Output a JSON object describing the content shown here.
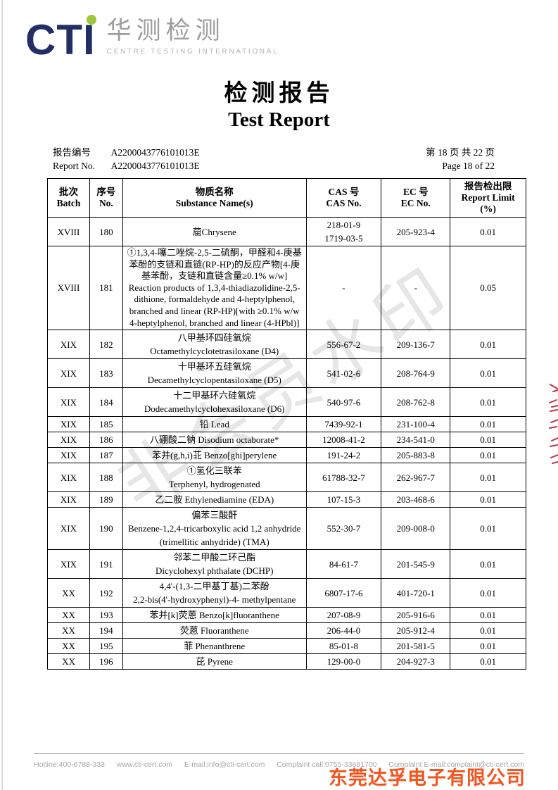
{
  "logo": {
    "wordmark": "CTI",
    "chinese_name": "华测检测",
    "subtitle": "CENTRE TESTING INTERNATIONAL",
    "wordmark_color": "#222e64",
    "dot_color": "#9dc63b"
  },
  "title": {
    "zh": "检测报告",
    "en": "Test Report"
  },
  "meta": {
    "report_no_label_zh": "报告编号",
    "report_no_label_en": "Report No.",
    "report_no_value": "A2200043776101013E",
    "page_info_zh": "第 18 页 共 22 页",
    "page_info_en": "Page 18 of 22"
  },
  "watermark": {
    "text": "非会员水印"
  },
  "table": {
    "headers": [
      {
        "zh": "批次",
        "en": "Batch"
      },
      {
        "zh": "序号",
        "en": "No."
      },
      {
        "zh": "物质名称",
        "en": "Substance Name(s)"
      },
      {
        "zh": "CAS 号",
        "en": "CAS No."
      },
      {
        "zh": "EC 号",
        "en": "EC No."
      },
      {
        "zh": "报告检出限",
        "en": "Report Limit",
        "unit": "(%)"
      }
    ],
    "rows": [
      {
        "batch": "XVIII",
        "no": "180",
        "name_lines": [
          "䓛Chrysene"
        ],
        "cas_lines": [
          "218-01-9",
          "1719-03-5"
        ],
        "ec": "205-923-4",
        "limit": "0.01"
      },
      {
        "batch": "XVIII",
        "no": "181",
        "dense": true,
        "name_lines": [
          "①1,3,4-噻二唑烷-2,5-二硫酮，甲醛和4-庚基苯酚的支链和直链(RP-HP)的反应产物[4-庚基苯酚，支链和直链含量≥0.1% w/w] Reaction products of 1,3,4-thiadiazolidine-2,5- dithione, formaldehyde and 4-heptylphenol, branched and linear (RP-HP)[with ≥0.1% w/w 4-heptylphenol, branched and linear (4-HPbl)]"
        ],
        "cas_lines": [
          "-"
        ],
        "ec": "-",
        "limit": "0.05"
      },
      {
        "batch": "XIX",
        "no": "182",
        "name_lines": [
          "八甲基环四硅氧烷",
          "Octamethylcyclotetrasiloxane (D4)"
        ],
        "cas_lines": [
          "556-67-2"
        ],
        "ec": "209-136-7",
        "limit": "0.01"
      },
      {
        "batch": "XIX",
        "no": "183",
        "name_lines": [
          "十甲基环五硅氧烷",
          "Decamethylcyclopentasiloxane (D5)"
        ],
        "cas_lines": [
          "541-02-6"
        ],
        "ec": "208-764-9",
        "limit": "0.01"
      },
      {
        "batch": "XIX",
        "no": "184",
        "name_lines": [
          "十二甲基环六硅氧烷",
          "Dodecamethylcyclohexasiloxane (D6)"
        ],
        "cas_lines": [
          "540-97-6"
        ],
        "ec": "208-762-8",
        "limit": "0.01"
      },
      {
        "batch": "XIX",
        "no": "185",
        "name_lines": [
          "铅 Lead"
        ],
        "cas_lines": [
          "7439-92-1"
        ],
        "ec": "231-100-4",
        "limit": "0.01"
      },
      {
        "batch": "XIX",
        "no": "186",
        "name_lines": [
          "八硼酸二钠 Disodium octaborate*"
        ],
        "cas_lines": [
          "12008-41-2"
        ],
        "ec": "234-541-0",
        "limit": "0.01"
      },
      {
        "batch": "XIX",
        "no": "187",
        "name_lines": [
          "苯并(g,h,i)苝 Benzo[ghi]perylene"
        ],
        "cas_lines": [
          "191-24-2"
        ],
        "ec": "205-883-8",
        "limit": "0.01"
      },
      {
        "batch": "XIX",
        "no": "188",
        "name_lines": [
          "①氢化三联苯",
          "Terphenyl, hydrogenated"
        ],
        "cas_lines": [
          "61788-32-7"
        ],
        "ec": "262-967-7",
        "limit": "0.01"
      },
      {
        "batch": "XIX",
        "no": "189",
        "name_lines": [
          "乙二胺 Ethylenediamine (EDA)"
        ],
        "cas_lines": [
          "107-15-3"
        ],
        "ec": "203-468-6",
        "limit": "0.01"
      },
      {
        "batch": "XIX",
        "no": "190",
        "name_lines": [
          "偏苯三酸酐",
          "Benzene-1,2,4-tricarboxylic acid 1,2 anhydride (trimellitic anhydride) (TMA)"
        ],
        "cas_lines": [
          "552-30-7"
        ],
        "ec": "209-008-0",
        "limit": "0.01"
      },
      {
        "batch": "XIX",
        "no": "191",
        "name_lines": [
          "邻苯二甲酸二环己酯",
          "Dicyclohexyl phthalate (DCHP)"
        ],
        "cas_lines": [
          "84-61-7"
        ],
        "ec": "201-545-9",
        "limit": "0.01"
      },
      {
        "batch": "XX",
        "no": "192",
        "name_lines": [
          "4,4'-(1,3-二甲基丁基)二苯酚",
          "2,2-bis(4'-hydroxyphenyl)-4- methylpentane"
        ],
        "cas_lines": [
          "6807-17-6"
        ],
        "ec": "401-720-1",
        "limit": "0.01"
      },
      {
        "batch": "XX",
        "no": "193",
        "name_lines": [
          "苯并[k]荧蒽 Benzo[k]fluoranthene"
        ],
        "cas_lines": [
          "207-08-9"
        ],
        "ec": "205-916-6",
        "limit": "0.01"
      },
      {
        "batch": "XX",
        "no": "194",
        "name_lines": [
          "荧蒽 Fluoranthene"
        ],
        "cas_lines": [
          "206-44-0"
        ],
        "ec": "205-912-4",
        "limit": "0.01"
      },
      {
        "batch": "XX",
        "no": "195",
        "name_lines": [
          "菲 Phenanthrene"
        ],
        "cas_lines": [
          "85-01-8"
        ],
        "ec": "201-581-5",
        "limit": "0.01"
      },
      {
        "batch": "XX",
        "no": "196",
        "name_lines": [
          "芘 Pyrene"
        ],
        "cas_lines": [
          "129-00-0"
        ],
        "ec": "204-927-3",
        "limit": "0.01"
      }
    ]
  },
  "footer": {
    "items": [
      "Hotline:400-6788-333",
      "www.cti-cert.com",
      "E-mail:info@cti-cert.com",
      "Complaint call:0755-33681700",
      "Complaint E-mail:complaint@cti-cert.com"
    ]
  },
  "overlays": {
    "company_name": "东莞达孚电子有限公司",
    "company_color": "#f4551e",
    "stamp_color": "#b8374a"
  }
}
